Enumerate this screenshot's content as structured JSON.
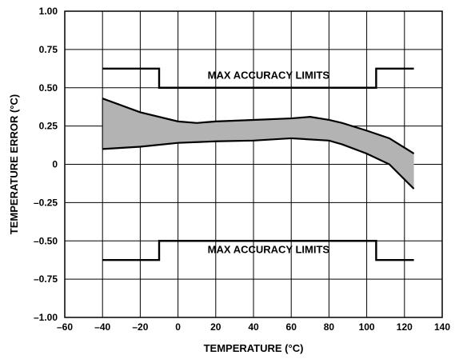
{
  "chart_data": {
    "type": "area",
    "xlabel": "TEMPERATURE (°C)",
    "ylabel": "TEMPERATURE ERROR (°C)",
    "xlim": [
      -60,
      140
    ],
    "ylim": [
      -1.0,
      1.0
    ],
    "grid": true,
    "x_ticks": [
      "–60",
      "–40",
      "–20",
      "0",
      "20",
      "40",
      "60",
      "80",
      "100",
      "120",
      "140"
    ],
    "y_ticks": [
      "1.00",
      "0.75",
      "0.50",
      "0.25",
      "0",
      "–0.25",
      "–0.50",
      "–0.75",
      "–1.00"
    ],
    "series": [
      {
        "role": "error_band",
        "fill": "#b3b3b3",
        "upper": {
          "x": [
            -40,
            -20,
            0,
            10,
            20,
            40,
            60,
            70,
            80,
            87,
            100,
            112,
            125
          ],
          "y": [
            0.43,
            0.34,
            0.28,
            0.27,
            0.28,
            0.29,
            0.3,
            0.31,
            0.29,
            0.27,
            0.22,
            0.17,
            0.07
          ]
        },
        "lower": {
          "x": [
            -40,
            -20,
            0,
            20,
            40,
            60,
            80,
            87,
            100,
            112,
            125
          ],
          "y": [
            0.1,
            0.115,
            0.14,
            0.15,
            0.155,
            0.17,
            0.155,
            0.13,
            0.07,
            0.0,
            -0.16
          ]
        }
      },
      {
        "role": "upper_limit",
        "x": [
          -40,
          -10,
          -10,
          105,
          105,
          125
        ],
        "y": [
          0.625,
          0.625,
          0.5,
          0.5,
          0.625,
          0.625
        ]
      },
      {
        "role": "lower_limit",
        "x": [
          -40,
          -10,
          -10,
          105,
          105,
          125
        ],
        "y": [
          -0.625,
          -0.625,
          -0.5,
          -0.5,
          -0.625,
          -0.625
        ]
      }
    ],
    "annotations": [
      {
        "text": "MAX ACCURACY LIMITS",
        "x": 48,
        "y": 0.56
      },
      {
        "text": "MAX ACCURACY LIMITS",
        "x": 48,
        "y": -0.58
      }
    ]
  }
}
